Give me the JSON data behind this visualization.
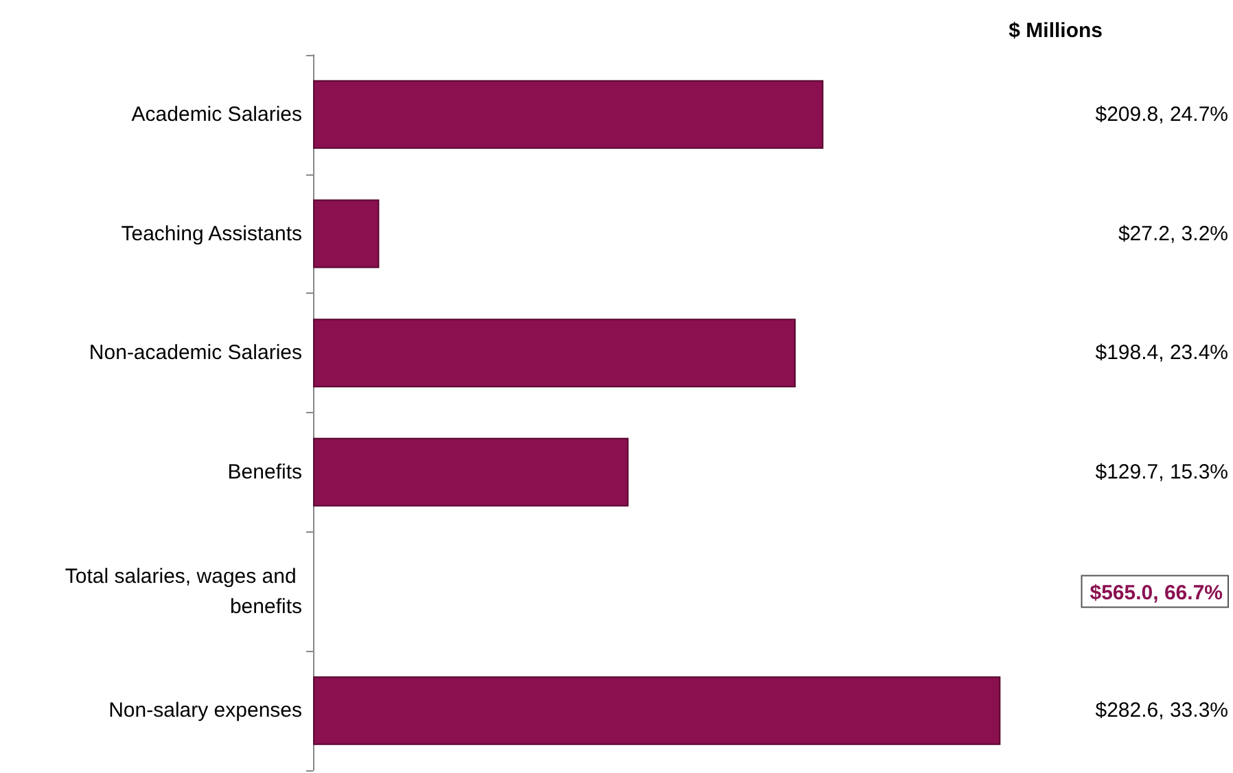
{
  "chart_data": {
    "type": "bar",
    "orientation": "horizontal",
    "title": "$ Millions",
    "categories": [
      "Academic Salaries",
      "Teaching Assistants",
      "Non-academic Salaries",
      "Benefits",
      "Total salaries, wages and benefits",
      "Non-salary expenses"
    ],
    "values": [
      209.8,
      27.2,
      198.4,
      129.7,
      null,
      282.6
    ],
    "color": "#8a1050",
    "value_labels": [
      "$209.8, 24.7%",
      "$27.2, 3.2%",
      "$198.4, 23.4%",
      "$129.7, 15.3%",
      "$565.0, 66.7%",
      "$282.6, 33.3%"
    ]
  }
}
